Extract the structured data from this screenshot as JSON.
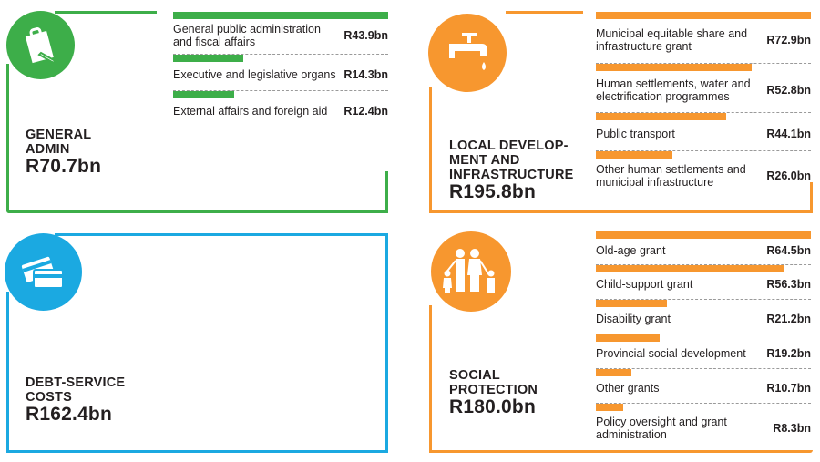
{
  "colors": {
    "green": "#3dae49",
    "orange": "#f7972f",
    "blue": "#1ba9e1"
  },
  "chart_data": [
    {
      "type": "bar",
      "title": "GENERAL ADMIN",
      "total": "R70.7bn",
      "color": "#3dae49",
      "icon": "clipboard-pen-icon",
      "categories": [
        "General public administration and fiscal affairs",
        "Executive and legislative organs",
        "External affairs and foreign aid"
      ],
      "values": [
        43.9,
        14.3,
        12.4
      ],
      "labels": [
        "R43.9bn",
        "R14.3bn",
        "R12.4bn"
      ]
    },
    {
      "type": "bar",
      "title": "LOCAL DEVELOP-MENT AND INFRASTRUCTURE",
      "total": "R195.8bn",
      "color": "#f7972f",
      "icon": "water-tap-icon",
      "categories": [
        "Municipal equitable share and infrastructure grant",
        "Human settlements, water and electrification programmes",
        "Public transport",
        "Other human settlements and municipal infrastructure"
      ],
      "values": [
        72.9,
        52.8,
        44.1,
        26.0
      ],
      "labels": [
        "R72.9bn",
        "R52.8bn",
        "R44.1bn",
        "R26.0bn"
      ]
    },
    {
      "type": "bar",
      "title": "DEBT-SERVICE COSTS",
      "total": "R162.4bn",
      "color": "#1ba9e1",
      "icon": "credit-cards-icon",
      "categories": [],
      "values": [],
      "labels": []
    },
    {
      "type": "bar",
      "title": "SOCIAL PROTECTION",
      "total": "R180.0bn",
      "color": "#f7972f",
      "icon": "family-icon",
      "categories": [
        "Old-age grant",
        "Child-support grant",
        "Disability grant",
        "Provincial social development",
        "Other grants",
        "Policy oversight and grant administration"
      ],
      "values": [
        64.5,
        56.3,
        21.2,
        19.2,
        10.7,
        8.3
      ],
      "labels": [
        "R64.5bn",
        "R56.3bn",
        "R21.2bn",
        "R19.2bn",
        "R10.7bn",
        "R8.3bn"
      ]
    }
  ],
  "titles": {
    "admin": [
      "GENERAL",
      "ADMIN"
    ],
    "local": [
      "LOCAL DEVELOP-",
      "MENT AND",
      "INFRASTRUCTURE"
    ],
    "debt": [
      "DEBT-SERVICE",
      "COSTS"
    ],
    "social": [
      "SOCIAL",
      "PROTECTION"
    ]
  }
}
